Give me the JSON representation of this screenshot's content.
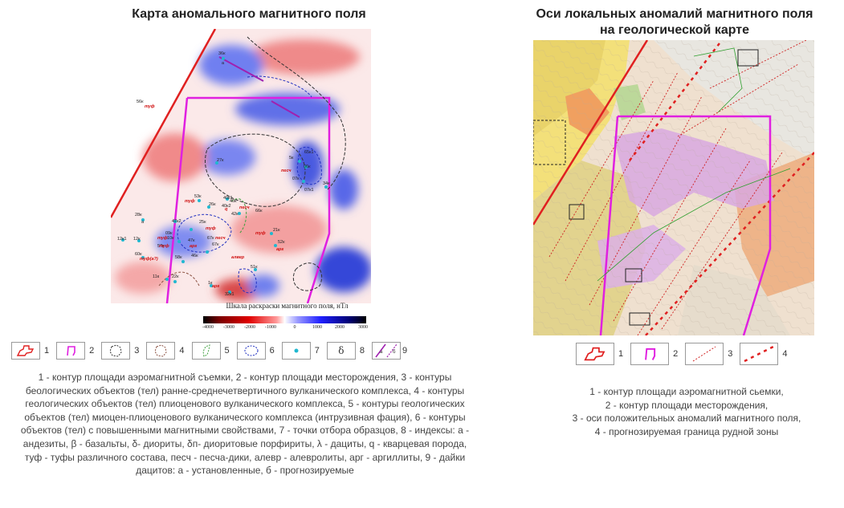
{
  "left_panel": {
    "title": "Карта аномального магнитного поля",
    "scale": {
      "title": "Шкала раскраски магнитного поля, нТл",
      "ticks": [
        "-4000",
        "-3000",
        "-2000",
        "-1000",
        "0",
        "1000",
        "2000",
        "3000"
      ]
    },
    "map_labels": {
      "samples": [
        "36к",
        "56к",
        "27к",
        "5к",
        "65к1",
        "06к",
        "07к",
        "07к1",
        "34к",
        "53к",
        "40к1",
        "40к",
        "26к",
        "40к2",
        "42к",
        "66к",
        "28к",
        "47к2",
        "25к",
        "21к",
        "09к",
        "47к",
        "67к",
        "52к",
        "12к1",
        "12к",
        "10к",
        "57к",
        "67к",
        "60к",
        "58к",
        "46к",
        "51к",
        "11к",
        "22к",
        "1к",
        "32к1"
      ],
      "rocks": [
        "туф",
        "песч",
        "туф",
        "q",
        "песч",
        "туф",
        "туф",
        "туф",
        "песч",
        "арг",
        "туф",
        "арг",
        "алвер",
        "туф(а?)",
        "арг"
      ],
      "indices": [
        "а",
        "а"
      ]
    },
    "legend": [
      {
        "num": "1",
        "icon": "area-outline-icon"
      },
      {
        "num": "2",
        "icon": "deposit-outline-icon"
      },
      {
        "num": "3",
        "icon": "dashed-contour-black-icon"
      },
      {
        "num": "4",
        "icon": "dashed-contour-brown-icon"
      },
      {
        "num": "5",
        "icon": "dashed-contour-green-icon"
      },
      {
        "num": "6",
        "icon": "dashed-contour-blue-icon"
      },
      {
        "num": "7",
        "icon": "sample-point-icon"
      },
      {
        "num": "8",
        "icon": "delta-index-icon",
        "glyph": "δ"
      },
      {
        "num": "9",
        "icon": "dike-lines-icon",
        "a": "а",
        "b": "б"
      }
    ],
    "caption": "1 - контур площади аэромагнитной съемки, 2 - контур площади месторождения, 3 - контуры беологических объектов (тел) ранне-среднечетвертичного вулканического комплекса, 4 - контуры геологических объектов (тел) плиоценового вулканического комплекса, 5 - контуры геологических объектов (тел) миоцен-плиоценового вулканического комплекса (интрузивная фация), 6 - контуры объектов (тел) с повышенными магнитными свойствами, 7 - точки отбора образцов, 8 - индексы: а - андезиты, β - базальты, δ- диориты, δп- диоритовые порфириты, λ - дациты, q - кварцевая порода, туф - туфы различного состава, песч - песча-дики, алевр - алевролиты, арг - аргиллиты, 9 - дайки дацитов: а - установленные, б - прогнозируемые"
  },
  "right_panel": {
    "title_line1": "Оси локальных аномалий магнитного поля",
    "title_line2": "на геологической карте",
    "legend": [
      {
        "num": "1",
        "icon": "area-outline-icon"
      },
      {
        "num": "2",
        "icon": "deposit-outline-icon"
      },
      {
        "num": "3",
        "icon": "anomaly-axis-icon"
      },
      {
        "num": "4",
        "icon": "ore-zone-boundary-icon"
      }
    ],
    "caption_lines": [
      "1 - контур площади аэромагнитной сьемки,",
      "2 - контур площади месторождения,",
      "3 - оси положительных аномалий магнитного поля,",
      "4 - прогнозируемая граница рудной зоны"
    ]
  },
  "colors": {
    "survey_outline": "#e02020",
    "deposit_outline": "#e020e0",
    "positive_anomaly": "#e03030",
    "negative_anomaly": "#3040d0",
    "sample_point": "#20b8d0"
  }
}
